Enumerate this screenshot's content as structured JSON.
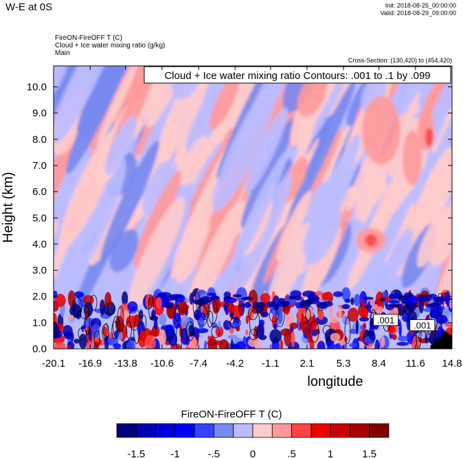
{
  "header": {
    "title": "W-E at 0S",
    "init": "Init: 2018-08-25_00:00:00",
    "valid": "Valid: 2018-08-29_09:00:00",
    "subtitle_lines": [
      "FireON-FireOFF T   (C)",
      "Cloud + Ice water mixing ratio   (g/kg)",
      "Main"
    ],
    "cross_section": "Cross-Section: (130,420) to (454,420)"
  },
  "chart_data": {
    "type": "heatmap",
    "title": "Cloud + Ice water mixing ratio Contours: .001 to .1 by .099",
    "xlabel": "longitude",
    "ylabel": "Height (km)",
    "xlim": [
      -20.1,
      14.8
    ],
    "ylim": [
      0,
      10.8
    ],
    "xticks": [
      -20.1,
      -16.9,
      -13.8,
      -10.6,
      -7.4,
      -4.2,
      -1.1,
      2.1,
      5.3,
      8.4,
      11.6,
      14.8
    ],
    "xtick_labels": [
      "-20.1",
      "-16.9",
      "-13.8",
      "-10.6",
      "-7.4",
      "-4.2",
      "-1.1",
      "2.1",
      "5.3",
      "8.4",
      "11.6",
      "14.8"
    ],
    "yticks": [
      0,
      1,
      2,
      3,
      4,
      5,
      6,
      7,
      8,
      9,
      10
    ],
    "ytick_labels": [
      "0.0",
      "1.0",
      "2.0",
      "3.0",
      "4.0",
      "5.0",
      "6.0",
      "7.0",
      "8.0",
      "9.0",
      "10.0"
    ],
    "contour_labels": [
      {
        "text": ".001",
        "x": 9.0,
        "y": 1.05
      },
      {
        "text": ".001",
        "x": 12.2,
        "y": 0.85
      }
    ],
    "colorbar": {
      "title": "FireON-FireOFF T  (C)",
      "boundaries": [
        -1.75,
        -1.5,
        -1.25,
        -1,
        -0.75,
        -0.5,
        -0.25,
        0,
        0.25,
        0.5,
        0.75,
        1,
        1.25,
        1.5,
        1.75
      ],
      "tick_values": [
        -1.5,
        -1,
        -0.5,
        0,
        0.5,
        1,
        1.5
      ],
      "tick_labels": [
        "-1.5",
        "-1",
        "-.5",
        "0",
        ".5",
        "1",
        "1.5"
      ],
      "colors": [
        "#000080",
        "#0000b8",
        "#0000d8",
        "#0000ff",
        "#3344ff",
        "#7788ee",
        "#bbbbff",
        "#ffcccc",
        "#ff9999",
        "#ff4444",
        "#ee0000",
        "#cc0000",
        "#aa0000",
        "#800000"
      ]
    }
  }
}
